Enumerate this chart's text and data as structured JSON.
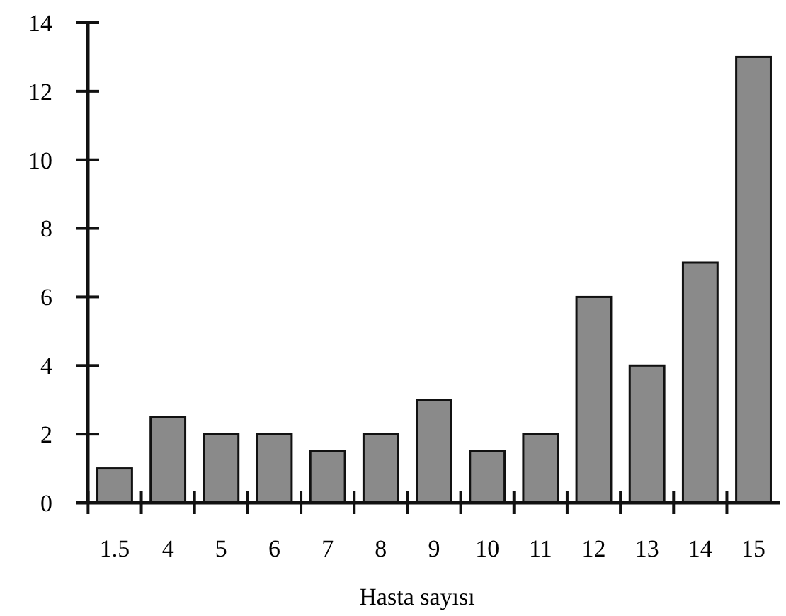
{
  "chart_data": {
    "type": "bar",
    "xlabel": "Hasta sayısı",
    "categories": [
      "1.5",
      "4",
      "5",
      "6",
      "7",
      "8",
      "9",
      "10",
      "11",
      "12",
      "13",
      "14",
      "15"
    ],
    "values": [
      1,
      2.5,
      2,
      2,
      1.5,
      2,
      3,
      1.5,
      2,
      6,
      4,
      7,
      13
    ],
    "color": "#8a8a8a",
    "ylim": [
      0,
      14
    ],
    "yticks": [
      0,
      2,
      4,
      6,
      8,
      10,
      12,
      14
    ],
    "grid": false
  }
}
